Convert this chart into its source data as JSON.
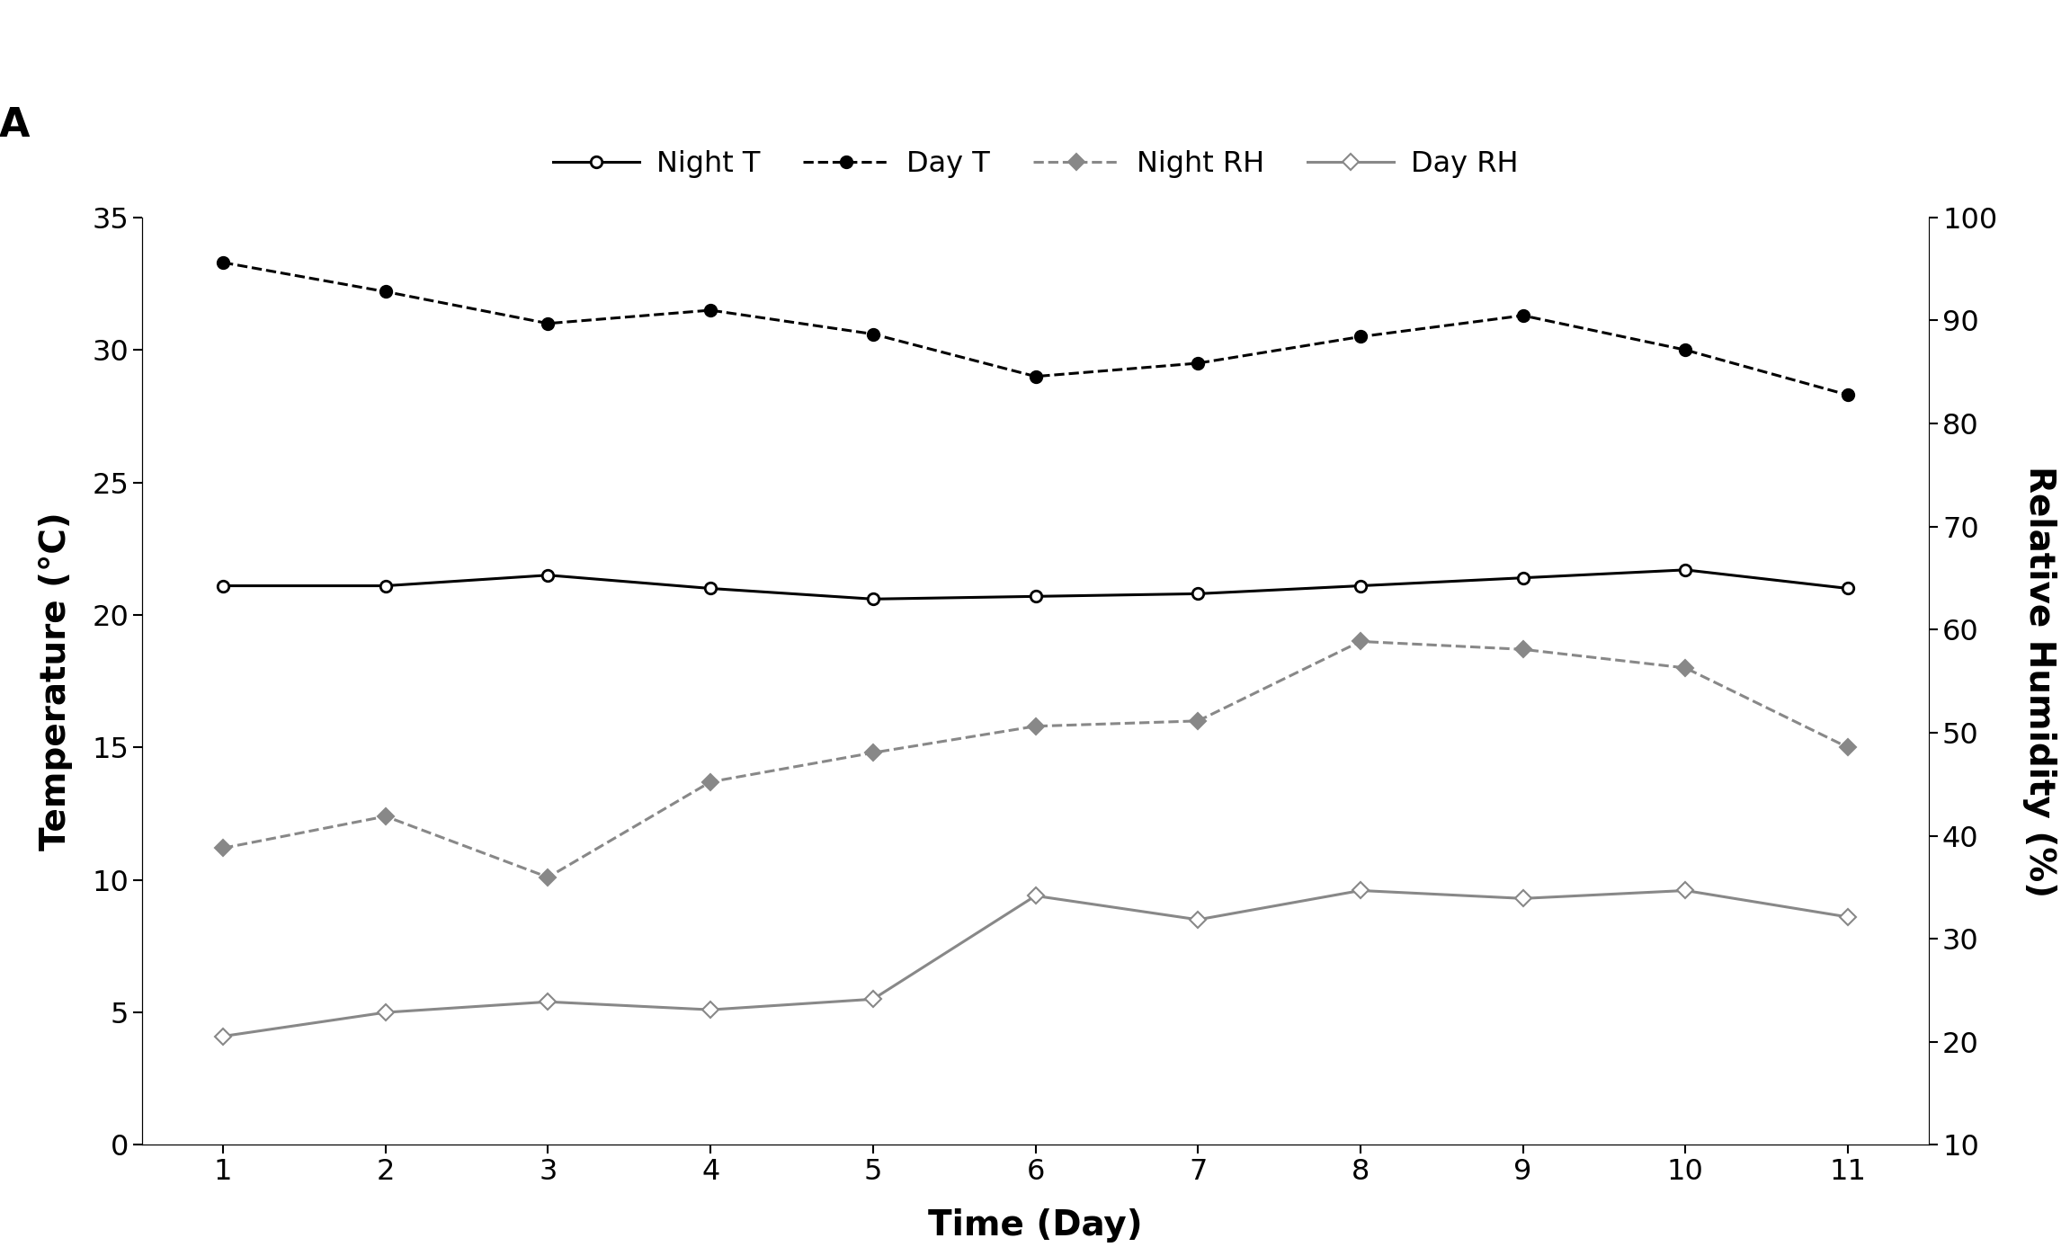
{
  "days": [
    1,
    2,
    3,
    4,
    5,
    6,
    7,
    8,
    9,
    10,
    11
  ],
  "night_T": [
    21.1,
    21.1,
    21.5,
    21.0,
    20.6,
    20.7,
    20.8,
    21.1,
    21.4,
    21.7,
    21.0
  ],
  "day_T": [
    33.3,
    32.2,
    31.0,
    31.5,
    30.6,
    29.0,
    29.5,
    30.5,
    31.3,
    30.0,
    28.3
  ],
  "night_RH_left_scale": [
    11.2,
    12.4,
    10.1,
    13.7,
    14.8,
    15.8,
    16.0,
    19.0,
    18.7,
    18.0,
    15.0
  ],
  "day_RH_left_scale": [
    4.1,
    5.0,
    5.4,
    5.1,
    5.5,
    9.4,
    8.5,
    9.6,
    9.3,
    9.6,
    8.6
  ],
  "night_T_color": "#000000",
  "day_T_color": "#000000",
  "night_RH_color": "#888888",
  "day_RH_color": "#888888",
  "title": "A",
  "xlabel": "Time (Day)",
  "ylabel_left": "Temperature (°C)",
  "ylabel_right": "Relative Humidity (%)",
  "ylim_left": [
    0,
    35
  ],
  "ylim_right": [
    10,
    100
  ],
  "yticks_left": [
    0,
    5,
    10,
    15,
    20,
    25,
    30,
    35
  ],
  "yticks_right": [
    10,
    20,
    30,
    40,
    50,
    60,
    70,
    80,
    90,
    100
  ],
  "legend_labels": [
    "Night T",
    "Day T",
    "Night RH",
    "Day RH"
  ],
  "background_color": "#ffffff"
}
